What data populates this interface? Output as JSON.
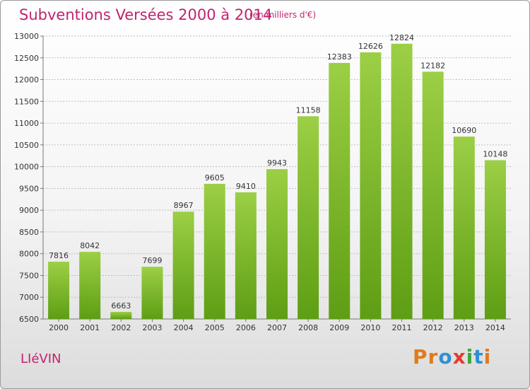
{
  "header": {
    "title": "Subventions Versées 2000 à 2014",
    "unit_note": "(en milliers d'€)"
  },
  "footer": {
    "place": "LIéVIN",
    "logo_letters": [
      "P",
      "r",
      "o",
      "x",
      "i",
      "t",
      "i"
    ]
  },
  "colors": {
    "title": "#c0246e",
    "bar_top": "#9ccf45",
    "bar_bottom": "#5e9e14",
    "grid": "#bdbdbd",
    "logo": [
      "#e07a1d",
      "#e07a1d",
      "#2f8fd3",
      "#e53c2a",
      "#3aa93a",
      "#2f8fd3",
      "#e07a1d"
    ]
  },
  "chart_data": {
    "type": "bar",
    "categories": [
      "2000",
      "2001",
      "2002",
      "2003",
      "2004",
      "2005",
      "2006",
      "2007",
      "2008",
      "2009",
      "2010",
      "2011",
      "2012",
      "2013",
      "2014"
    ],
    "values": [
      7816,
      8042,
      6663,
      7699,
      8967,
      9605,
      9410,
      9943,
      11158,
      12383,
      12626,
      12824,
      12182,
      10690,
      10148
    ],
    "title": "Subventions Versées 2000 à 2014",
    "ylim": [
      6500,
      13000
    ],
    "yticks": [
      6500,
      7000,
      7500,
      8000,
      8500,
      9000,
      9500,
      10000,
      10500,
      11000,
      11500,
      12000,
      12500,
      13000
    ],
    "grid": true,
    "data_labels": true,
    "legend": "none"
  }
}
